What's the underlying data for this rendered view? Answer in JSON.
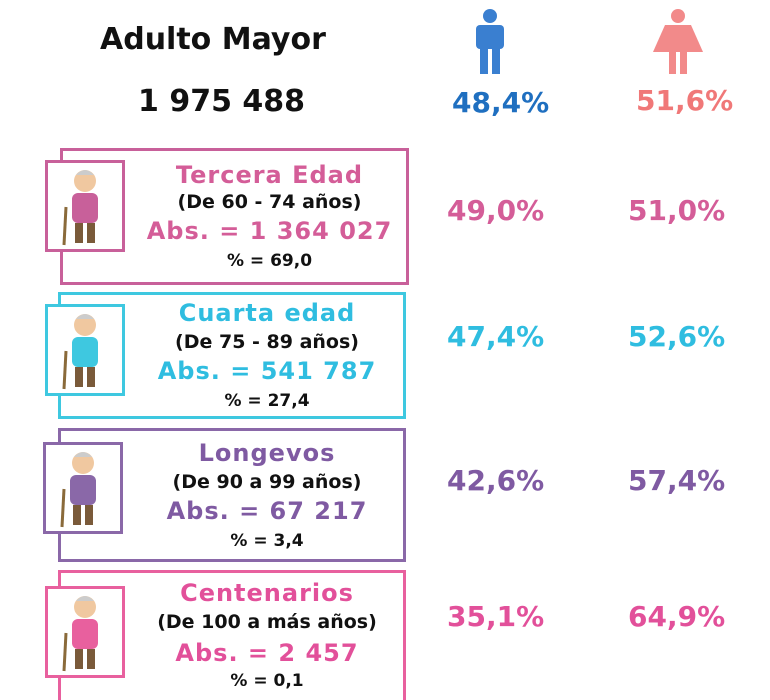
{
  "header": {
    "title": "Adulto Mayor",
    "total": "1 975 488",
    "male": "48,4%",
    "female": "51,6%"
  },
  "groups": [
    {
      "title": "Tercera Edad",
      "range": "(De 60 - 74 años)",
      "abs": "Abs. = 1 364 027",
      "pct": "% = 69,0",
      "male": "49,0%",
      "female": "51,0%"
    },
    {
      "title": "Cuarta edad",
      "range": "(De 75 - 89 años)",
      "abs": "Abs. = 541 787",
      "pct": "% = 27,4",
      "male": "47,4%",
      "female": "52,6%"
    },
    {
      "title": "Longevos",
      "range": "(De 90 a 99 años)",
      "abs": "Abs. = 67 217",
      "pct": "% = 3,4",
      "male": "42,6%",
      "female": "57,4%"
    },
    {
      "title": "Centenarios",
      "range": "(De 100 a más años)",
      "abs": "Abs. = 2 457",
      "pct": "% = 0,1",
      "male": "35,1%",
      "female": "64,9%"
    }
  ]
}
